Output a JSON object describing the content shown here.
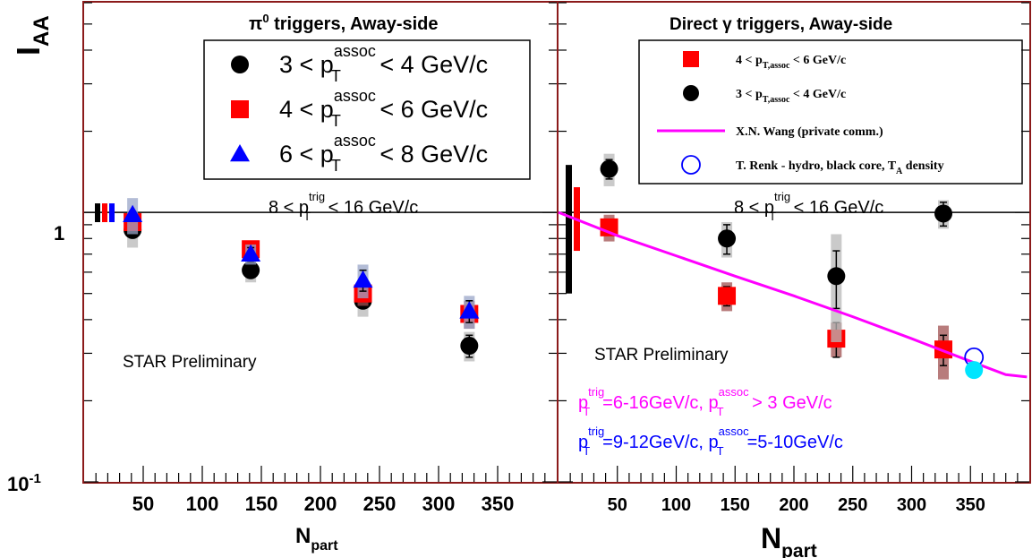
{
  "y_axis": {
    "label_main": "I",
    "label_sub": "AA",
    "tick_one": "1",
    "tick_tenth_base": "10",
    "tick_tenth_exp": "-1"
  },
  "left_panel": {
    "title_pre": "π",
    "title_sup": "0",
    "title_post": " triggers, Away-side",
    "trig_label": {
      "pre": "8 < p",
      "sup": "trig",
      "sub": "T",
      "post": " < 16 GeV/c"
    },
    "preliminary": "STAR Preliminary",
    "x_title_main": "N",
    "x_title_sub": "part",
    "xticks": [
      "50",
      "100",
      "150",
      "200",
      "250",
      "300",
      "350"
    ],
    "legend": [
      {
        "pre": "3 < p",
        "sup": "assoc",
        "sub": "T",
        "post": " < 4 GeV/c",
        "marker": "circle",
        "color": "#000000"
      },
      {
        "pre": "4 < p",
        "sup": "assoc",
        "sub": "T",
        "post": " < 6 GeV/c",
        "marker": "square",
        "color": "#ff0000"
      },
      {
        "pre": "6 < p",
        "sup": "assoc",
        "sub": "T",
        "post": " < 8 GeV/c",
        "marker": "triangle",
        "color": "#0000ff"
      }
    ]
  },
  "right_panel": {
    "title": "Direct γ triggers, Away-side",
    "trig_label": {
      "pre": "8 < p",
      "sup": "trig",
      "sub": "T",
      "post": " < 16 GeV/c"
    },
    "preliminary": "STAR Preliminary",
    "x_title_main": "N",
    "x_title_sub": "part",
    "xticks": [
      "50",
      "100",
      "150",
      "200",
      "250",
      "300",
      "350"
    ],
    "legend": [
      {
        "pre": "4 < p",
        "sub": "T,assoc",
        "post": " < 6 GeV/c",
        "marker": "square",
        "color": "#ff0000"
      },
      {
        "pre": "3 < p",
        "sub": "T,assoc",
        "post": " < 4 GeV/c",
        "marker": "circle",
        "color": "#000000"
      },
      {
        "pre": "X.N. Wang (private comm.)",
        "marker": "line",
        "color": "#ff00ff"
      },
      {
        "pre": "T. Renk - hydro, black core, T",
        "sub": "A",
        "post": " density",
        "marker": "open-circle",
        "color": "#0000ff"
      }
    ],
    "note_magenta": {
      "p1": "p",
      "sup1": "trig",
      "sub1": "T",
      "mid": "=6-16GeV/c, p",
      "sup2": "assoc",
      "sub2": "T",
      "post": " > 3 GeV/c",
      "color": "#ff00ff"
    },
    "note_blue": {
      "p1": "p",
      "sup1": "trig",
      "sub1": "T",
      "mid": "=9-12GeV/c, p",
      "sup2": "assoc",
      "sub2": "T",
      "post": "=5-10GeV/c",
      "color": "#0000ff"
    }
  },
  "chart_data": [
    {
      "type": "scatter",
      "title": "π0 triggers, Away-side",
      "xlabel": "Npart",
      "ylabel": "IAA",
      "xlim": [
        0,
        400
      ],
      "ylim": [
        0.1,
        6
      ],
      "yscale": "log",
      "reference_line_y": 1,
      "legend_position": "top-right",
      "series": [
        {
          "name": "3 < pT assoc < 4 GeV/c",
          "marker": "circle",
          "color": "#000000",
          "points": [
            {
              "x": 41,
              "y": 0.86,
              "err": 0.03,
              "sys": 0.12
            },
            {
              "x": 141,
              "y": 0.61,
              "err": 0.03,
              "sys": 0.06
            },
            {
              "x": 236,
              "y": 0.47,
              "err": 0.02,
              "sys": 0.06
            },
            {
              "x": 326,
              "y": 0.32,
              "err": 0.03,
              "sys": 0.04
            }
          ]
        },
        {
          "name": "4 < pT assoc < 6 GeV/c",
          "marker": "square",
          "color": "#ff0000",
          "points": [
            {
              "x": 41,
              "y": 0.92,
              "err": 0.03,
              "sys": 0.06
            },
            {
              "x": 141,
              "y": 0.73,
              "err": 0.03,
              "sys": 0.05
            },
            {
              "x": 236,
              "y": 0.5,
              "err": 0.03,
              "sys": 0.05
            },
            {
              "x": 326,
              "y": 0.42,
              "err": 0.03,
              "sys": 0.05
            }
          ]
        },
        {
          "name": "6 < pT assoc < 8 GeV/c",
          "marker": "triangle",
          "color": "#0000ff",
          "points": [
            {
              "x": 41,
              "y": 0.98,
              "err": 0.03,
              "sys": 0.15
            },
            {
              "x": 141,
              "y": 0.7,
              "err": 0.04,
              "sys": 0.06
            },
            {
              "x": 236,
              "y": 0.56,
              "err": 0.05,
              "sys": 0.08
            },
            {
              "x": 326,
              "y": 0.43,
              "err": 0.04,
              "sys": 0.06
            }
          ]
        }
      ],
      "normalization_bars": [
        {
          "color": "#000000",
          "low": 0.92,
          "high": 1.08
        },
        {
          "color": "#ff0000",
          "low": 0.92,
          "high": 1.08
        },
        {
          "color": "#0000ff",
          "low": 0.92,
          "high": 1.08
        }
      ]
    },
    {
      "type": "scatter",
      "title": "Direct γ triggers, Away-side",
      "xlabel": "Npart",
      "ylabel": "IAA",
      "xlim": [
        0,
        400
      ],
      "ylim": [
        0.1,
        6
      ],
      "yscale": "log",
      "reference_line_y": 1,
      "legend_position": "top-right",
      "series": [
        {
          "name": "4 < pT,assoc < 6 GeV/c",
          "marker": "square",
          "color": "#ff0000",
          "points": [
            {
              "x": 43,
              "y": 0.88,
              "err": 0.04,
              "sys": 0.1
            },
            {
              "x": 143,
              "y": 0.49,
              "err": 0.04,
              "sys": 0.06
            },
            {
              "x": 236,
              "y": 0.34,
              "err": 0.05,
              "sys": 0.05
            },
            {
              "x": 327,
              "y": 0.31,
              "err": 0.04,
              "sys": 0.07
            }
          ]
        },
        {
          "name": "3 < pT,assoc < 4 GeV/c",
          "marker": "circle",
          "color": "#000000",
          "points": [
            {
              "x": 43,
              "y": 1.45,
              "err": 0.12,
              "sys": 0.2
            },
            {
              "x": 143,
              "y": 0.8,
              "err": 0.1,
              "sys": 0.12
            },
            {
              "x": 236,
              "y": 0.58,
              "err": 0.14,
              "sys": 0.25
            },
            {
              "x": 327,
              "y": 0.99,
              "err": 0.1,
              "sys": 0.12
            }
          ]
        },
        {
          "name": "X.N. Wang (private comm.)",
          "marker": "line",
          "color": "#ff00ff",
          "x": [
            0,
            50,
            100,
            150,
            200,
            250,
            300,
            350,
            380,
            398
          ],
          "y": [
            1.0,
            0.82,
            0.69,
            0.58,
            0.49,
            0.41,
            0.34,
            0.28,
            0.25,
            0.245
          ]
        },
        {
          "name": "T. Renk - hydro, black core, TA density",
          "marker": "open-circle",
          "color": "#0000ff",
          "points": [
            {
              "x": 353,
              "y": 0.29
            }
          ]
        },
        {
          "marker": "filled-circle",
          "color": "#00e5ff",
          "points": [
            {
              "x": 353,
              "y": 0.26
            }
          ]
        }
      ],
      "normalization_bars": [
        {
          "color": "#000000",
          "low": 0.5,
          "high": 1.5
        },
        {
          "color": "#ff0000",
          "low": 0.72,
          "high": 1.24
        }
      ]
    }
  ]
}
